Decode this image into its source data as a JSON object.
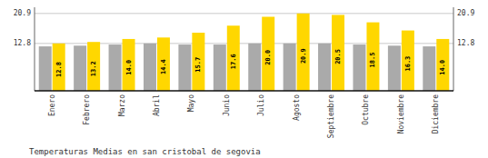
{
  "chart_data": {
    "type": "bar",
    "title": "Temperaturas Medias en san cristobal de segovia",
    "categories": [
      "Enero",
      "Febrero",
      "Marzo",
      "Abril",
      "Mayo",
      "Junio",
      "Julio",
      "Agosto",
      "Septiembre",
      "Octubre",
      "Noviembre",
      "Diciembre"
    ],
    "series": [
      {
        "color": "#AAAAAA",
        "values": [
          12.0,
          12.2,
          12.5,
          12.8,
          12.5,
          12.5,
          12.8,
          12.8,
          12.8,
          12.5,
          12.2,
          12.0
        ]
      },
      {
        "color": "#FFD700",
        "values": [
          12.8,
          13.2,
          14.0,
          14.4,
          15.7,
          17.6,
          20.0,
          20.9,
          20.5,
          18.5,
          16.3,
          14.0
        ],
        "data_labels": true,
        "value_labels": [
          "12.8",
          "13.2",
          "14.0",
          "14.4",
          "15.7",
          "17.6",
          "20.0",
          "20.9",
          "20.5",
          "18.5",
          "16.3",
          "14.0"
        ]
      }
    ],
    "ylim": [
      0,
      22.572
    ],
    "yticks": [
      12.8,
      20.9
    ],
    "y2lim": [
      0,
      22.572
    ],
    "y2ticks": [
      12.8,
      20.9
    ],
    "grid": true
  }
}
